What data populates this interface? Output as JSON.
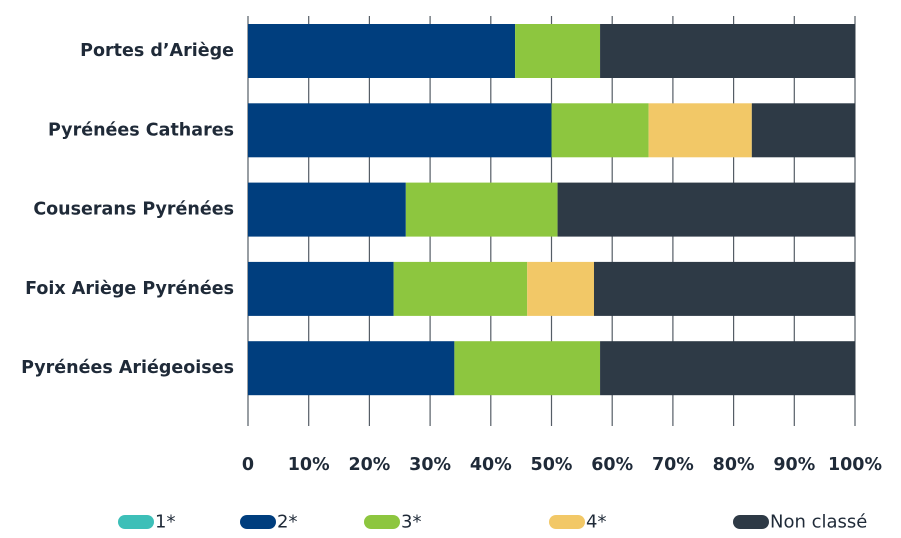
{
  "chart_data": {
    "type": "bar",
    "orientation": "horizontal",
    "stacked": true,
    "categories": [
      "Portes d’Ariège",
      "Pyrénées Cathares",
      "Couserans Pyrénées",
      "Foix Ariège Pyrénées",
      "Pyrénées Ariégeoises"
    ],
    "series": [
      {
        "name": "1*",
        "color": "#3dbfb8",
        "values": [
          0,
          0,
          0,
          0,
          0
        ]
      },
      {
        "name": "2*",
        "color": "#003e7e",
        "values": [
          44,
          50,
          26,
          24,
          34
        ]
      },
      {
        "name": "3*",
        "color": "#8dc63f",
        "values": [
          14,
          16,
          25,
          22,
          24
        ]
      },
      {
        "name": "4*",
        "color": "#f2c867",
        "values": [
          0,
          17,
          0,
          11,
          0
        ]
      },
      {
        "name": "Non classé",
        "color": "#2e3a46",
        "values": [
          42,
          17,
          49,
          43,
          42
        ]
      }
    ],
    "x_ticks": [
      "0",
      "10%",
      "20%",
      "30%",
      "40%",
      "50%",
      "60%",
      "70%",
      "80%",
      "90%",
      "100%"
    ],
    "xlim": [
      0,
      100
    ],
    "grid": "vertical",
    "legend_position": "bottom",
    "title": "",
    "xlabel": "",
    "ylabel": ""
  }
}
